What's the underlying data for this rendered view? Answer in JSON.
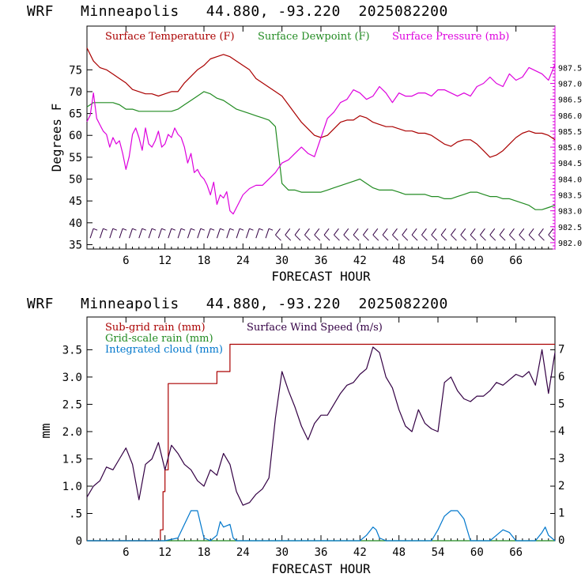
{
  "chart_data": [
    {
      "type": "line",
      "title": "WRF   Minneapolis   44.880, -93.220  2025082200",
      "xlabel": "FORECAST HOUR",
      "ylabel": "Degrees F",
      "xlim": [
        0,
        72
      ],
      "ylim_left": [
        34,
        85
      ],
      "ylim_right": [
        981.8,
        988.8
      ],
      "x_ticks": [
        6,
        12,
        18,
        24,
        30,
        36,
        42,
        48,
        54,
        60,
        66
      ],
      "x_tick_labels": [
        "6",
        "12",
        "18",
        "24",
        "30",
        "36",
        "42",
        "48",
        "54",
        "60",
        "66"
      ],
      "y_ticks_left": [
        35,
        40,
        45,
        50,
        55,
        60,
        65,
        70,
        75
      ],
      "y_tick_labels_left": [
        "35",
        "40",
        "45",
        "50",
        "55",
        "60",
        "65",
        "70",
        "75"
      ],
      "y_ticks_right": [
        982.0,
        982.5,
        983.0,
        983.5,
        984.0,
        984.5,
        985.0,
        985.5,
        986.0,
        986.5,
        987.0,
        987.5
      ],
      "y_tick_labels_right": [
        "982.0",
        "982.5",
        "983.0",
        "983.5",
        "984.0",
        "984.5",
        "985.0",
        "985.5",
        "986.0",
        "986.5",
        "987.0",
        "987.5"
      ],
      "series": [
        {
          "name": "Surface Temperature (F)",
          "color": "#aa0000",
          "axis": "left",
          "x": [
            0,
            1,
            2,
            3,
            4,
            5,
            6,
            7,
            8,
            9,
            10,
            11,
            12,
            13,
            14,
            15,
            16,
            17,
            18,
            19,
            20,
            21,
            22,
            23,
            24,
            25,
            26,
            27,
            28,
            29,
            30,
            31,
            32,
            33,
            34,
            35,
            36,
            37,
            38,
            39,
            40,
            41,
            42,
            43,
            44,
            45,
            46,
            47,
            48,
            49,
            50,
            51,
            52,
            53,
            54,
            55,
            56,
            57,
            58,
            59,
            60,
            61,
            62,
            63,
            64,
            65,
            66,
            67,
            68,
            69,
            70,
            71,
            72
          ],
          "values": [
            80,
            77,
            75.5,
            75,
            74,
            73,
            72,
            70.5,
            70,
            69.5,
            69.5,
            69,
            69.5,
            70,
            70,
            72,
            73.5,
            75,
            76,
            77.5,
            78,
            78.5,
            78,
            77,
            76,
            75,
            73,
            72,
            71,
            70,
            69,
            67,
            65,
            63,
            61.5,
            60,
            59.5,
            60,
            61.5,
            63,
            63.5,
            63.5,
            64.5,
            64,
            63,
            62.5,
            62,
            62,
            61.5,
            61,
            61,
            60.5,
            60.5,
            60,
            59,
            58,
            57.5,
            58.5,
            59,
            59,
            58,
            56.5,
            55,
            55.5,
            56.5,
            58,
            59.5,
            60.5,
            61,
            60.5,
            60.5,
            60,
            59
          ]
        },
        {
          "name": "Surface Dewpoint (F)",
          "color": "#228b22",
          "axis": "left",
          "x": [
            0,
            1,
            2,
            3,
            4,
            5,
            6,
            7,
            8,
            9,
            10,
            11,
            12,
            13,
            14,
            15,
            16,
            17,
            18,
            19,
            20,
            21,
            22,
            23,
            24,
            25,
            26,
            27,
            28,
            29,
            30,
            31,
            32,
            33,
            34,
            35,
            36,
            37,
            38,
            39,
            40,
            41,
            42,
            43,
            44,
            45,
            46,
            47,
            48,
            49,
            50,
            51,
            52,
            53,
            54,
            55,
            56,
            57,
            58,
            59,
            60,
            61,
            62,
            63,
            64,
            65,
            66,
            67,
            68,
            69,
            70,
            71,
            72
          ],
          "values": [
            66.5,
            67.5,
            67.5,
            67.5,
            67.5,
            67,
            66,
            66,
            65.5,
            65.5,
            65.5,
            65.5,
            65.5,
            65.5,
            66,
            67,
            68,
            69,
            70,
            69.5,
            68.5,
            68,
            67,
            66,
            65.5,
            65,
            64.5,
            64,
            63.5,
            62,
            49,
            47.5,
            47.5,
            47,
            47,
            47,
            47,
            47.5,
            48,
            48.5,
            49,
            49.5,
            50,
            49,
            48,
            47.5,
            47.5,
            47.5,
            47,
            46.5,
            46.5,
            46.5,
            46.5,
            46,
            46,
            45.5,
            45.5,
            46,
            46.5,
            47,
            47,
            46.5,
            46,
            46,
            45.5,
            45.5,
            45,
            44.5,
            44,
            43,
            43,
            43.5,
            44
          ]
        },
        {
          "name": "Surface Pressure (mb)",
          "color": "#dd00dd",
          "axis": "right",
          "x": [
            0,
            0.5,
            1,
            1.5,
            2,
            2.5,
            3,
            3.5,
            4,
            4.5,
            5,
            5.5,
            6,
            6.5,
            7,
            7.5,
            8,
            8.5,
            9,
            9.5,
            10,
            10.5,
            11,
            11.5,
            12,
            12.5,
            13,
            13.5,
            14,
            14.5,
            15,
            15.5,
            16,
            16.5,
            17,
            17.5,
            18,
            18.5,
            19,
            19.5,
            20,
            20.5,
            21,
            21.5,
            22,
            22.5,
            23,
            23.5,
            24,
            25,
            26,
            27,
            28,
            29,
            30,
            31,
            32,
            33,
            34,
            35,
            36,
            37,
            38,
            39,
            40,
            41,
            42,
            43,
            44,
            45,
            46,
            47,
            48,
            49,
            50,
            51,
            52,
            53,
            54,
            55,
            56,
            57,
            58,
            59,
            60,
            61,
            62,
            63,
            64,
            65,
            66,
            67,
            68,
            69,
            70,
            71,
            72
          ],
          "values": [
            985.8,
            986.0,
            986.7,
            985.9,
            985.7,
            985.5,
            985.4,
            985.0,
            985.3,
            985.1,
            985.2,
            984.8,
            984.3,
            984.7,
            985.4,
            985.6,
            985.3,
            984.9,
            985.6,
            985.1,
            985.0,
            985.2,
            985.5,
            985.0,
            985.1,
            985.4,
            985.3,
            985.6,
            985.4,
            985.3,
            985.0,
            984.5,
            984.8,
            984.2,
            984.3,
            984.1,
            984.0,
            983.8,
            983.5,
            983.9,
            983.2,
            983.5,
            983.4,
            983.6,
            983.0,
            982.9,
            983.1,
            983.3,
            983.5,
            983.7,
            983.8,
            983.8,
            984.0,
            984.2,
            984.5,
            984.6,
            984.8,
            985.0,
            984.8,
            984.7,
            985.3,
            985.9,
            986.1,
            986.4,
            986.5,
            986.8,
            986.7,
            986.5,
            986.6,
            986.9,
            986.7,
            986.4,
            986.7,
            986.6,
            986.6,
            986.7,
            986.7,
            986.6,
            986.8,
            986.8,
            986.7,
            986.6,
            986.7,
            986.6,
            986.9,
            987.0,
            987.2,
            987.0,
            986.9,
            987.3,
            987.1,
            987.2,
            987.5,
            987.4,
            987.3,
            987.1,
            987.6
          ]
        }
      ],
      "wind_barbs": {
        "description": "surface wind barbs along bottom of panel",
        "x": [
          0.5,
          2,
          3.5,
          5,
          6.5,
          8,
          9.5,
          11,
          12.5,
          14,
          15.5,
          17,
          18.5,
          20,
          21.5,
          23,
          24.5,
          26,
          27.5,
          29,
          30.5,
          32,
          33.5,
          35,
          36.5,
          38,
          39.5,
          41,
          42.5,
          44,
          45.5,
          47,
          48.5,
          50,
          51.5,
          53,
          54.5,
          56,
          57.5,
          59,
          60.5,
          62,
          63.5,
          65,
          66.5,
          68,
          69.5,
          71
        ]
      },
      "legend": [
        "Surface Temperature (F)",
        "Surface Dewpoint (F)",
        "Surface Pressure (mb)"
      ]
    },
    {
      "type": "line",
      "title": "WRF   Minneapolis   44.880, -93.220  2025082200",
      "xlabel": "FORECAST HOUR",
      "ylabel": "mm",
      "xlim": [
        0,
        72
      ],
      "ylim_left": [
        0,
        4.1
      ],
      "ylim_right": [
        0,
        8.2
      ],
      "x_ticks": [
        6,
        12,
        18,
        24,
        30,
        36,
        42,
        48,
        54,
        60,
        66
      ],
      "x_tick_labels": [
        "6",
        "12",
        "18",
        "24",
        "30",
        "36",
        "42",
        "48",
        "54",
        "60",
        "66"
      ],
      "y_ticks_left": [
        0,
        0.5,
        1.0,
        1.5,
        2.0,
        2.5,
        3.0,
        3.5
      ],
      "y_tick_labels_left": [
        "0",
        ".5",
        "1.0",
        "1.5",
        "2.0",
        "2.5",
        "3.0",
        "3.5"
      ],
      "y_ticks_right": [
        0,
        1,
        2,
        3,
        4,
        5,
        6,
        7
      ],
      "y_tick_labels_right": [
        "0",
        "1",
        "2",
        "3",
        "4",
        "5",
        "6",
        "7"
      ],
      "series": [
        {
          "name": "Sub-grid rain (mm)",
          "color": "#aa0000",
          "axis": "left",
          "step": true,
          "x": [
            0,
            11,
            11.3,
            11.7,
            12,
            12.5,
            19.5,
            20,
            21,
            22,
            72
          ],
          "values": [
            0,
            0,
            0.2,
            0.9,
            1.3,
            2.88,
            2.88,
            3.1,
            3.1,
            3.6,
            3.6
          ]
        },
        {
          "name": "Grid-scale rain (mm)",
          "color": "#228b22",
          "axis": "left",
          "x": [
            0,
            72
          ],
          "values": [
            0,
            0
          ]
        },
        {
          "name": "Integrated cloud (mm)",
          "color": "#0077cc",
          "axis": "left",
          "x": [
            0,
            12,
            14,
            15,
            16,
            17,
            17.5,
            18,
            19,
            20,
            20.5,
            21,
            22,
            22.5,
            23,
            24,
            42,
            43,
            44,
            44.5,
            45,
            46,
            53,
            54,
            55,
            56,
            57,
            58,
            59,
            62,
            63,
            64,
            65,
            66,
            69,
            70,
            70.5,
            71,
            72
          ],
          "values": [
            0,
            0,
            0.05,
            0.3,
            0.55,
            0.55,
            0.3,
            0.05,
            0,
            0.1,
            0.35,
            0.25,
            0.3,
            0.05,
            0,
            0,
            0,
            0.1,
            0.25,
            0.2,
            0.05,
            0,
            0,
            0.2,
            0.45,
            0.55,
            0.55,
            0.4,
            0,
            0,
            0.1,
            0.2,
            0.15,
            0,
            0,
            0.15,
            0.25,
            0.1,
            0
          ]
        },
        {
          "name": "Surface Wind Speed (m/s)",
          "color": "#330044",
          "axis": "right",
          "x": [
            0,
            1,
            2,
            3,
            4,
            5,
            6,
            7,
            8,
            9,
            10,
            11,
            12,
            13,
            14,
            15,
            16,
            17,
            18,
            19,
            20,
            21,
            22,
            23,
            24,
            25,
            26,
            27,
            28,
            29,
            30,
            31,
            32,
            33,
            34,
            35,
            36,
            37,
            38,
            39,
            40,
            41,
            42,
            43,
            44,
            45,
            46,
            47,
            48,
            49,
            50,
            51,
            52,
            53,
            54,
            55,
            56,
            57,
            58,
            59,
            60,
            61,
            62,
            63,
            64,
            65,
            66,
            67,
            68,
            69,
            70,
            71,
            72
          ],
          "values": [
            1.6,
            2.0,
            2.2,
            2.7,
            2.6,
            3.0,
            3.4,
            2.8,
            1.5,
            2.8,
            3.0,
            3.6,
            2.6,
            3.5,
            3.2,
            2.8,
            2.6,
            2.2,
            2.0,
            2.6,
            2.4,
            3.2,
            2.8,
            1.8,
            1.3,
            1.4,
            1.7,
            1.9,
            2.3,
            4.5,
            6.2,
            5.5,
            4.9,
            4.2,
            3.7,
            4.3,
            4.6,
            4.6,
            5.0,
            5.4,
            5.7,
            5.8,
            6.1,
            6.3,
            7.1,
            6.9,
            6.0,
            5.6,
            4.8,
            4.2,
            4.0,
            4.8,
            4.3,
            4.1,
            4.0,
            5.8,
            6.0,
            5.5,
            5.2,
            5.1,
            5.3,
            5.3,
            5.5,
            5.8,
            5.7,
            5.9,
            6.1,
            6.0,
            6.2,
            5.7,
            7.0,
            5.4,
            6.9
          ]
        }
      ],
      "legend": [
        "Sub-grid rain (mm)",
        "Grid-scale rain (mm)",
        "Integrated cloud (mm)",
        "Surface Wind Speed (m/s)"
      ]
    }
  ]
}
